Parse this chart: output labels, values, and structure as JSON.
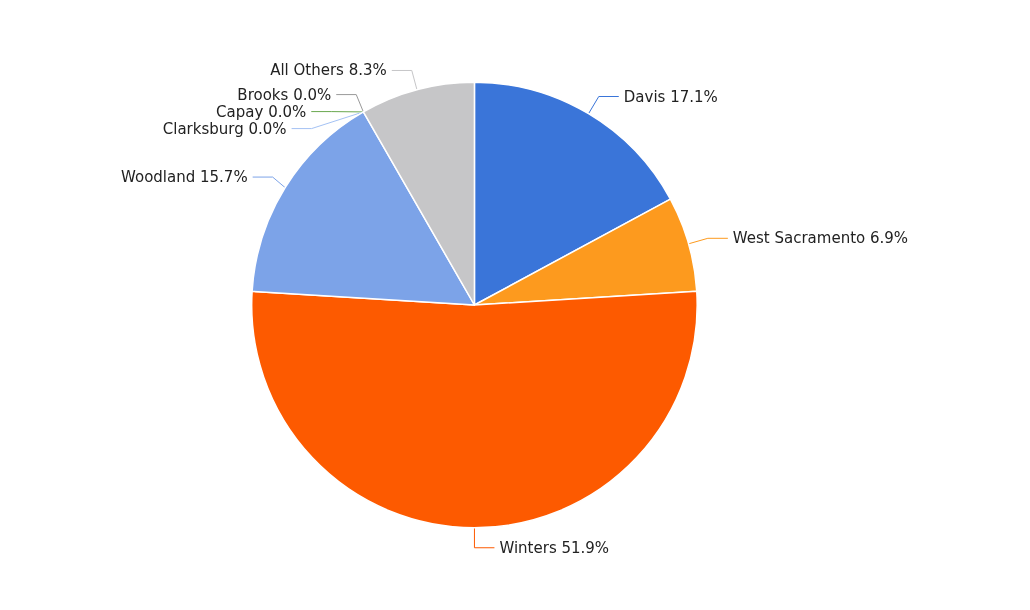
{
  "chart_data": {
    "type": "pie",
    "categories": [
      "Davis",
      "West Sacramento",
      "Winters",
      "Woodland",
      "Brooks",
      "Capay",
      "Clarksburg",
      "All Others"
    ],
    "values": [
      17.1,
      6.9,
      51.9,
      15.7,
      0.0,
      0.0,
      0.0,
      8.3
    ],
    "value_labels": [
      "17.1%",
      "6.9%",
      "51.9%",
      "15.7%",
      "0.0%",
      "0.0%",
      "0.0%",
      "8.3%"
    ],
    "colors": [
      "#3a75d9",
      "#fd9a1e",
      "#fd5a00",
      "#7ca3e8",
      "#999999",
      "#6aa84f",
      "#a4c2f4",
      "#c6c6c8"
    ]
  }
}
